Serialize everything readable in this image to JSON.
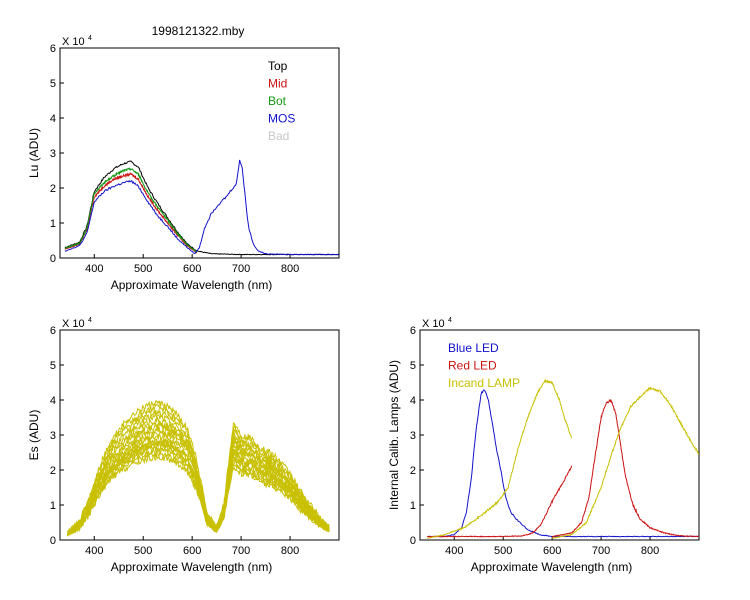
{
  "figure_title": "1998121322.mby",
  "colors": {
    "top": "#000000",
    "mid": "#cc1111",
    "bot": "#119911",
    "mos": "#1111cc",
    "bad": "#c8c8c8",
    "es": "#c8c000",
    "blue_led": "#1111cc",
    "red_led": "#cc1111",
    "incand": "#c8c000"
  },
  "chart_data": [
    {
      "id": "lu",
      "type": "line",
      "xlabel": "Approximate Wavelength (nm)",
      "ylabel": "Lu (ADU)",
      "exponent_label": "X 10",
      "exponent_sup": "4",
      "xlim": [
        330,
        900
      ],
      "ylim": [
        0,
        6
      ],
      "xticks": [
        "400",
        "500",
        "600",
        "700",
        "800"
      ],
      "yticks": [
        "0",
        "1",
        "2",
        "3",
        "4",
        "5",
        "6"
      ],
      "legend_location": "upper-center",
      "series": [
        {
          "name": "Top",
          "color_key": "top",
          "x": [
            340,
            370,
            385,
            400,
            420,
            440,
            460,
            475,
            490,
            510,
            530,
            550,
            570,
            590,
            610,
            640,
            700,
            800,
            900
          ],
          "y": [
            0.3,
            0.45,
            0.9,
            1.9,
            2.3,
            2.55,
            2.7,
            2.75,
            2.6,
            2.0,
            1.55,
            1.15,
            0.75,
            0.4,
            0.2,
            0.12,
            0.1,
            0.1,
            0.1
          ]
        },
        {
          "name": "Mid",
          "color_key": "mid",
          "x": [
            340,
            370,
            385,
            400,
            420,
            440,
            460,
            475,
            490,
            510,
            530,
            550,
            570,
            590,
            610
          ],
          "y": [
            0.25,
            0.4,
            0.8,
            1.75,
            2.05,
            2.25,
            2.35,
            2.4,
            2.25,
            1.75,
            1.35,
            1.0,
            0.65,
            0.35,
            0.15
          ]
        },
        {
          "name": "Bot",
          "color_key": "bot",
          "x": [
            340,
            370,
            385,
            400,
            420,
            440,
            460,
            475,
            490,
            510,
            530,
            550,
            570,
            590,
            610
          ],
          "y": [
            0.28,
            0.42,
            0.85,
            1.85,
            2.15,
            2.35,
            2.5,
            2.55,
            2.4,
            1.85,
            1.45,
            1.08,
            0.7,
            0.38,
            0.17
          ]
        },
        {
          "name": "MOS",
          "color_key": "mos",
          "x": [
            340,
            370,
            385,
            400,
            420,
            440,
            460,
            475,
            490,
            510,
            530,
            550,
            570,
            590,
            605,
            615,
            625,
            640,
            655,
            670,
            680,
            690,
            697,
            702,
            708,
            715,
            725,
            735,
            750,
            800,
            900
          ],
          "y": [
            0.2,
            0.35,
            0.7,
            1.6,
            1.9,
            2.05,
            2.15,
            2.2,
            2.05,
            1.6,
            1.2,
            0.9,
            0.55,
            0.3,
            0.12,
            0.3,
            0.85,
            1.3,
            1.55,
            1.75,
            1.95,
            2.1,
            2.8,
            2.6,
            1.8,
            0.9,
            0.4,
            0.2,
            0.12,
            0.1,
            0.1
          ]
        },
        {
          "name": "Bad",
          "color_key": "bad",
          "x": [],
          "y": []
        }
      ]
    },
    {
      "id": "es",
      "type": "line",
      "xlabel": "Approximate Wavelength (nm)",
      "ylabel": "Es (ADU)",
      "exponent_label": "X 10",
      "exponent_sup": "4",
      "xlim": [
        330,
        900
      ],
      "ylim": [
        0,
        6
      ],
      "xticks": [
        "400",
        "500",
        "600",
        "700",
        "800"
      ],
      "yticks": [
        "0",
        "1",
        "2",
        "3",
        "4",
        "5",
        "6"
      ],
      "series": [
        {
          "name": "",
          "color_key": "es",
          "x": [
            345,
            370,
            390,
            410,
            430,
            450,
            470,
            490,
            510,
            530,
            550,
            570,
            590,
            605,
            620,
            630,
            650,
            665,
            675,
            685,
            695,
            705,
            720,
            740,
            760,
            780,
            800,
            820,
            840,
            860,
            880
          ],
          "y": [
            0.15,
            0.4,
            0.9,
            1.6,
            2.05,
            2.35,
            2.6,
            2.8,
            2.9,
            3.0,
            2.95,
            2.8,
            2.5,
            2.0,
            1.2,
            0.6,
            0.3,
            0.8,
            1.8,
            2.7,
            2.5,
            2.35,
            2.4,
            2.1,
            2.0,
            1.8,
            1.5,
            1.1,
            0.8,
            0.5,
            0.3
          ]
        },
        {
          "name": "",
          "color_key": "es",
          "x": [
            345,
            370,
            390,
            410,
            430,
            450,
            470,
            490,
            510,
            530,
            550,
            570,
            590,
            605,
            620,
            630,
            650,
            665,
            675,
            685,
            695,
            705,
            720,
            740,
            760,
            780,
            800,
            820,
            840,
            860,
            880
          ],
          "y": [
            0.2,
            0.5,
            1.1,
            1.9,
            2.5,
            2.9,
            3.2,
            3.4,
            3.55,
            3.6,
            3.5,
            3.3,
            2.9,
            2.3,
            1.4,
            0.7,
            0.35,
            0.95,
            2.1,
            3.1,
            2.85,
            2.7,
            2.7,
            2.4,
            2.3,
            2.05,
            1.75,
            1.3,
            0.95,
            0.6,
            0.35
          ]
        },
        {
          "name": "",
          "color_key": "es",
          "x": [
            345,
            370,
            390,
            410,
            430,
            450,
            470,
            490,
            510,
            530,
            550,
            570,
            590,
            605,
            620,
            630,
            650,
            665,
            675,
            685,
            695,
            705,
            720,
            740,
            760,
            780,
            800,
            820,
            840,
            860,
            880
          ],
          "y": [
            0.15,
            0.35,
            0.8,
            1.4,
            1.85,
            2.1,
            2.3,
            2.45,
            2.55,
            2.6,
            2.55,
            2.4,
            2.15,
            1.7,
            1.05,
            0.5,
            0.25,
            0.7,
            1.55,
            2.3,
            2.15,
            2.05,
            2.05,
            1.8,
            1.7,
            1.55,
            1.3,
            0.95,
            0.7,
            0.45,
            0.25
          ]
        }
      ]
    },
    {
      "id": "lamps",
      "type": "line",
      "xlabel": "Approximate Wavelength (nm)",
      "ylabel": "Internal Calib. Lamps (ADU)",
      "exponent_label": "X 10",
      "exponent_sup": "4",
      "xlim": [
        330,
        900
      ],
      "ylim": [
        0,
        6
      ],
      "xticks": [
        "400",
        "500",
        "600",
        "700",
        "800"
      ],
      "yticks": [
        "0",
        "1",
        "2",
        "3",
        "4",
        "5",
        "6"
      ],
      "legend_location": "upper-left",
      "series": [
        {
          "name": "Blue LED",
          "color_key": "blue_led",
          "x": [
            345,
            380,
            400,
            415,
            425,
            435,
            445,
            455,
            462,
            470,
            478,
            485,
            495,
            505,
            515,
            530,
            550,
            575,
            600,
            650,
            750,
            900
          ],
          "y": [
            0.1,
            0.1,
            0.15,
            0.35,
            0.8,
            1.8,
            3.2,
            4.2,
            4.3,
            4.0,
            3.3,
            2.7,
            2.0,
            1.2,
            0.8,
            0.55,
            0.3,
            0.15,
            0.1,
            0.1,
            0.1,
            0.1
          ]
        },
        {
          "name": "Red LED",
          "color_key": "red_led",
          "x": [
            345,
            500,
            540,
            560,
            575,
            590,
            600,
            620,
            640
          ],
          "y": [
            0.1,
            0.1,
            0.12,
            0.2,
            0.4,
            0.8,
            1.1,
            1.6,
            2.1
          ]
        },
        {
          "name": "",
          "color_key": "red_led",
          "x": [
            600,
            640,
            660,
            675,
            690,
            700,
            710,
            720,
            730,
            740,
            750,
            765,
            780,
            800,
            830,
            860,
            900
          ],
          "y": [
            0.1,
            0.2,
            0.5,
            1.2,
            2.6,
            3.5,
            3.9,
            4.0,
            3.6,
            2.7,
            1.8,
            1.0,
            0.6,
            0.35,
            0.2,
            0.12,
            0.1
          ]
        },
        {
          "name": "Incand LAMP",
          "color_key": "incand",
          "x": [
            345,
            380,
            420,
            460,
            490,
            510,
            530,
            550,
            570,
            585,
            600,
            615,
            625,
            640
          ],
          "y": [
            0.05,
            0.15,
            0.35,
            0.75,
            1.1,
            1.5,
            2.6,
            3.5,
            4.2,
            4.55,
            4.5,
            4.0,
            3.5,
            2.9
          ]
        },
        {
          "name": "",
          "color_key": "incand",
          "x": [
            600,
            640,
            670,
            700,
            720,
            740,
            760,
            780,
            800,
            820,
            840,
            860,
            880,
            900
          ],
          "y": [
            0.05,
            0.15,
            0.5,
            1.5,
            2.4,
            3.2,
            3.8,
            4.1,
            4.35,
            4.25,
            3.9,
            3.4,
            2.9,
            2.45
          ]
        }
      ]
    }
  ]
}
